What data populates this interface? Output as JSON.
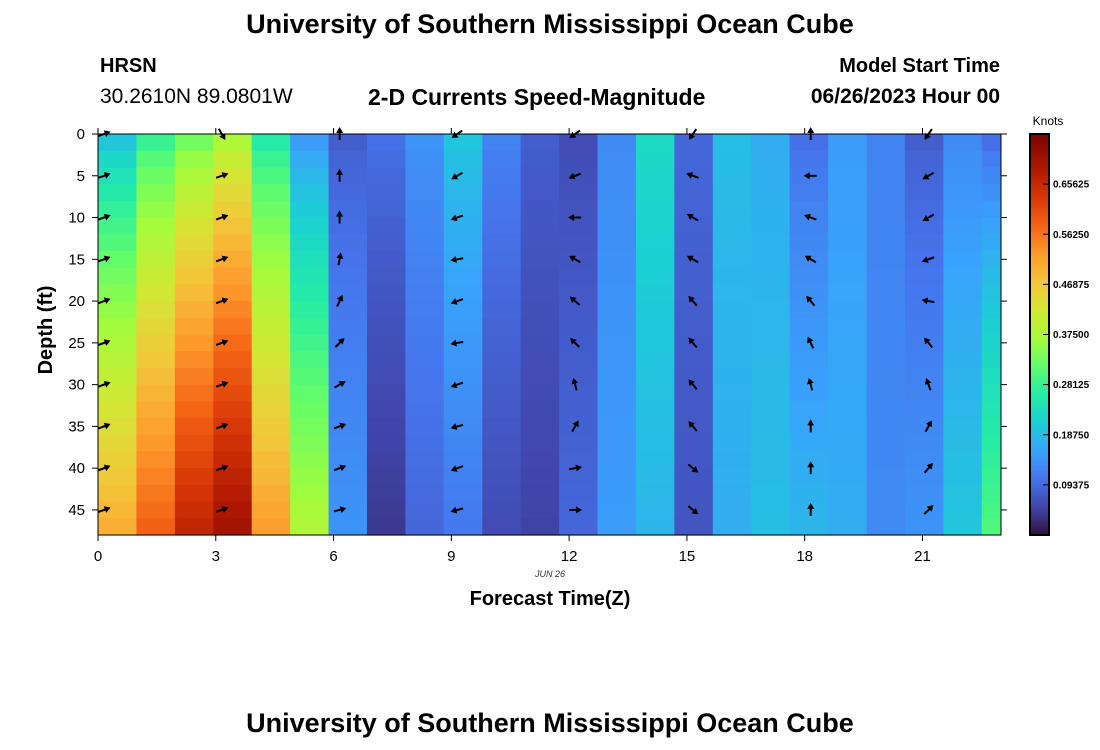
{
  "header": {
    "title": "University of Southern Mississippi Ocean Cube",
    "station": "HRSN",
    "coordinates": "30.2610N  89.0801W",
    "subtitle": "2-D Currents Speed-Magnitude",
    "model_start_label": "Model Start Time",
    "model_start_value": "06/26/2023 Hour 00",
    "footer_title": "University of Southern Mississippi Ocean Cube"
  },
  "chart_data": {
    "type": "heatmap",
    "title": "2-D Currents Speed-Magnitude",
    "xlabel": "Forecast Time(Z)",
    "ylabel": "Depth (ft)",
    "date_label": "JUN 26",
    "x_ticks": [
      0,
      3,
      6,
      9,
      12,
      15,
      18,
      21
    ],
    "y_ticks": [
      0,
      5,
      10,
      15,
      20,
      25,
      30,
      35,
      40,
      45
    ],
    "xlim": [
      0,
      23
    ],
    "ylim": [
      0,
      48
    ],
    "colorbar": {
      "title": "Knots",
      "tick_labels": [
        "0.65625",
        "0.56250",
        "0.46875",
        "0.37500",
        "0.28125",
        "0.18750",
        "0.09375"
      ],
      "tick_values": [
        0.65625,
        0.5625,
        0.46875,
        0.375,
        0.28125,
        0.1875,
        0.09375
      ],
      "range": [
        0.0,
        0.75
      ],
      "colormap": "turbo"
    },
    "speed_profile": {
      "hours": [
        0,
        1,
        2,
        3,
        4,
        5,
        6,
        7,
        8,
        9,
        10,
        11,
        12,
        13,
        14,
        15,
        16,
        17,
        18,
        19,
        20,
        21,
        22,
        23
      ],
      "knots_surface": [
        0.2,
        0.28,
        0.33,
        0.38,
        0.26,
        0.15,
        0.08,
        0.1,
        0.14,
        0.2,
        0.12,
        0.08,
        0.06,
        0.13,
        0.23,
        0.09,
        0.19,
        0.17,
        0.1,
        0.15,
        0.12,
        0.08,
        0.13,
        0.1
      ],
      "knots_bottom": [
        0.5,
        0.58,
        0.66,
        0.7,
        0.52,
        0.38,
        0.14,
        0.04,
        0.09,
        0.11,
        0.06,
        0.05,
        0.09,
        0.15,
        0.18,
        0.07,
        0.17,
        0.19,
        0.18,
        0.17,
        0.13,
        0.14,
        0.2,
        0.3
      ]
    },
    "direction_hours": [
      0,
      3,
      6,
      9,
      12,
      15,
      18,
      21
    ],
    "direction_depths": [
      0,
      5,
      10,
      15,
      20,
      25,
      30,
      35,
      40,
      45
    ],
    "direction_degrees_from_north": [
      [
        70,
        150,
        0,
        235,
        235,
        215,
        0,
        215
      ],
      [
        70,
        70,
        0,
        240,
        250,
        290,
        270,
        240
      ],
      [
        70,
        70,
        0,
        250,
        270,
        300,
        290,
        240
      ],
      [
        70,
        70,
        10,
        260,
        300,
        300,
        300,
        250
      ],
      [
        70,
        70,
        25,
        250,
        310,
        320,
        320,
        280
      ],
      [
        70,
        70,
        45,
        260,
        315,
        320,
        335,
        320
      ],
      [
        70,
        70,
        60,
        250,
        345,
        320,
        345,
        340
      ],
      [
        70,
        70,
        70,
        255,
        30,
        320,
        0,
        30
      ],
      [
        70,
        70,
        70,
        250,
        80,
        130,
        0,
        40
      ],
      [
        70,
        70,
        75,
        255,
        90,
        130,
        0,
        45
      ]
    ]
  }
}
